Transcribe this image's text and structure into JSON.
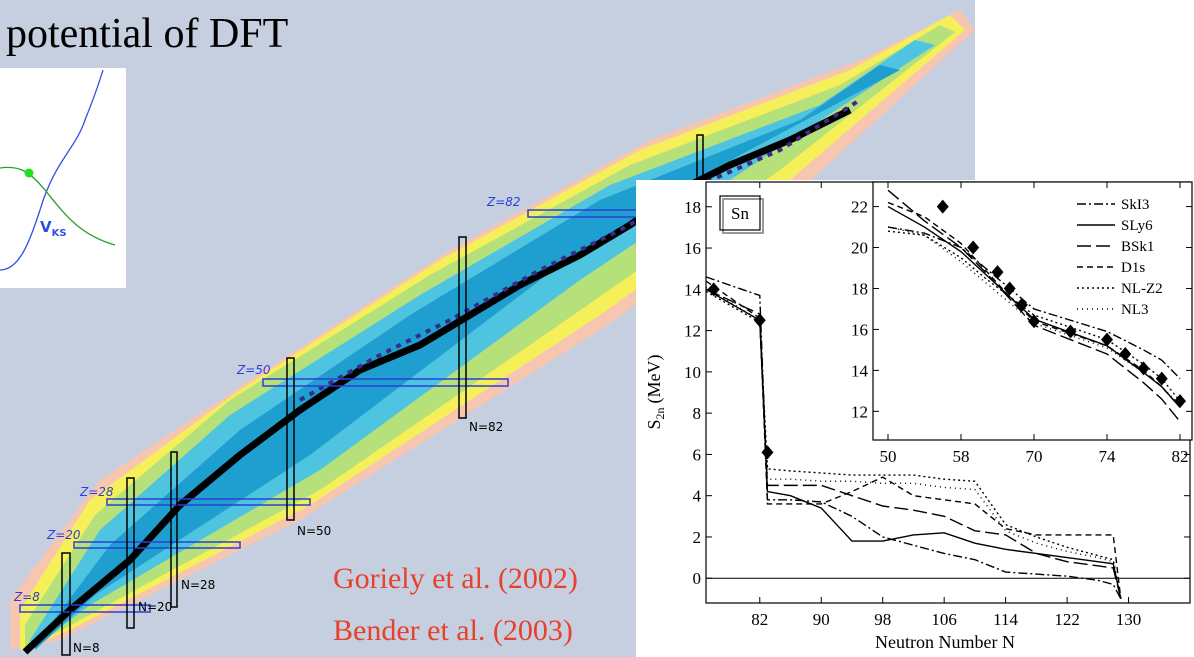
{
  "title": "potential of DFT",
  "potential_label": {
    "main": "V",
    "sub": "KS"
  },
  "nuclide_chart": {
    "magic_labels": [
      "Z=8",
      "Z=20",
      "Z=28",
      "Z=50",
      "Z=82",
      "N=8",
      "N=20",
      "N=28",
      "N=50",
      "N=82"
    ]
  },
  "references": [
    "Goriely et al. (2002)",
    "Bender et al. (2003)"
  ],
  "chart_data": [
    {
      "type": "line",
      "box_label": "Sn",
      "x_label": "Neutron Number N",
      "y_label": {
        "main": "S",
        "sub": "2n",
        "unit": "(MeV)"
      },
      "xlim": [
        75,
        138
      ],
      "xticks": [
        82,
        90,
        98,
        106,
        114,
        122,
        130
      ],
      "ylim": [
        -1.2,
        19.2
      ],
      "yticks": [
        0,
        2,
        4,
        6,
        8,
        10,
        12,
        14,
        16,
        18
      ],
      "x": [
        75,
        82,
        83,
        86,
        90,
        94,
        98,
        102,
        106,
        110,
        114,
        118,
        122,
        126,
        128,
        129
      ],
      "series": [
        {
          "name": "SkI3",
          "color": "#000000",
          "style": "dashdot",
          "values": [
            14.6,
            13.7,
            3.8,
            3.8,
            3.7,
            3.0,
            2.0,
            1.6,
            1.2,
            0.9,
            0.3,
            0.2,
            0.1,
            -0.1,
            -0.3,
            -1
          ]
        },
        {
          "name": "SLy6",
          "color": "#000000",
          "style": "solid",
          "values": [
            14,
            12.5,
            4.2,
            4.0,
            3.4,
            1.8,
            1.8,
            2.1,
            2.2,
            1.7,
            1.4,
            1.2,
            1.0,
            0.8,
            0.7,
            -1
          ]
        },
        {
          "name": "BSk1",
          "color": "#000000",
          "style": "longdash",
          "values": [
            14,
            12.8,
            4.5,
            4.5,
            4.5,
            4.0,
            3.5,
            3.3,
            3.0,
            2.3,
            2.1,
            1.2,
            0.8,
            0.6,
            0.5,
            -1
          ]
        },
        {
          "name": "D1s",
          "color": "#000000",
          "style": "dashed",
          "values": [
            14.4,
            12.6,
            3.6,
            3.6,
            3.6,
            4.2,
            4.9,
            4.0,
            3.8,
            3.6,
            2.4,
            2.1,
            2.1,
            2.1,
            2.1,
            -1
          ]
        },
        {
          "name": "NL-Z2",
          "color": "#000000",
          "style": "dotted",
          "values": [
            13.9,
            12.4,
            5.3,
            5.2,
            5.1,
            5.0,
            5.0,
            5.0,
            4.8,
            4.7,
            2.6,
            2.0,
            1.5,
            1.1,
            0.9,
            -1
          ]
        },
        {
          "name": "NL3",
          "color": "#000000",
          "style": "finedotted",
          "values": [
            14.1,
            12.5,
            4.8,
            4.8,
            4.7,
            4.7,
            4.6,
            4.6,
            4.4,
            4.3,
            2.3,
            1.7,
            1.3,
            1.0,
            0.8,
            -1
          ]
        }
      ],
      "experiment": {
        "x": [
          76,
          82,
          83
        ],
        "values": [
          14,
          12.5,
          6.1
        ]
      }
    },
    {
      "type": "line",
      "legend": "upper right",
      "xlim": [
        48,
        84
      ],
      "xticks": [
        50,
        58,
        70,
        74,
        82
      ],
      "ylim": [
        10.6,
        23.2
      ],
      "yticks": [
        12,
        14,
        16,
        18,
        20,
        22
      ],
      "x": [
        50,
        54,
        58,
        62,
        66,
        70,
        74,
        78,
        80,
        82
      ],
      "series": [
        {
          "name": "SkI3",
          "color": "#000000",
          "style": "dashdot",
          "values": [
            21,
            20.7,
            20,
            19,
            18,
            17,
            15.9,
            15,
            14.5,
            13.6
          ]
        },
        {
          "name": "SLy6",
          "color": "#000000",
          "style": "solid",
          "values": [
            22,
            21,
            19.8,
            18.7,
            17.6,
            16.5,
            15.2,
            13.9,
            13.2,
            12.2
          ]
        },
        {
          "name": "BSk1",
          "color": "#000000",
          "style": "longdash",
          "values": [
            22.8,
            21.3,
            20,
            18.8,
            17.5,
            16.2,
            14.8,
            13.4,
            12.6,
            11.5
          ]
        },
        {
          "name": "D1s",
          "color": "#000000",
          "style": "dashed",
          "values": [
            22.2,
            21.5,
            20.2,
            18.9,
            17.6,
            16.4,
            15.2,
            14,
            13.2,
            12.2
          ]
        },
        {
          "name": "NL-Z2",
          "color": "#000000",
          "style": "dotted",
          "values": [
            20.8,
            20.6,
            19.5,
            18.5,
            17.6,
            16.7,
            15.5,
            14.3,
            13.6,
            12.5
          ]
        },
        {
          "name": "NL3",
          "color": "#000000",
          "style": "finedotted",
          "values": [
            21,
            20.6,
            19.3,
            18.3,
            17.3,
            16.3,
            15.1,
            13.9,
            13.2,
            12.3
          ]
        }
      ],
      "experiment": {
        "x": [
          56,
          60,
          64,
          66,
          68,
          70,
          72,
          74,
          76,
          78,
          80,
          82
        ],
        "values": [
          22,
          20,
          18.8,
          18,
          17.2,
          16.4,
          15.9,
          15.5,
          14.8,
          14.1,
          13.6,
          12.5
        ]
      }
    }
  ]
}
